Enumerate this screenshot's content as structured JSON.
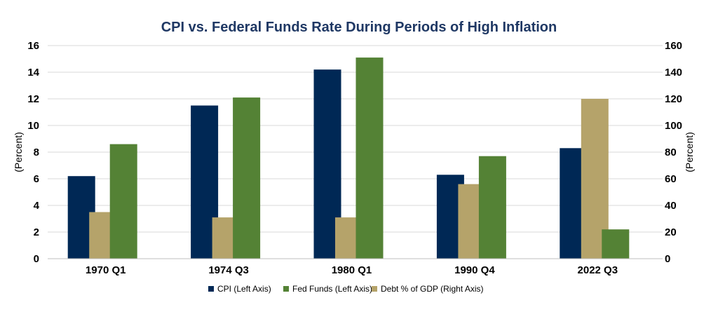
{
  "chart_data": {
    "type": "bar",
    "title": "CPI vs. Federal Funds Rate During Periods of High Inflation",
    "categories": [
      "1970 Q1",
      "1974 Q3",
      "1980 Q1",
      "1990 Q4",
      "2022 Q3"
    ],
    "series": [
      {
        "name": "CPI (Left Axis)",
        "axis": "left",
        "color": "#002855",
        "values": [
          6.2,
          11.5,
          14.2,
          6.3,
          8.3
        ]
      },
      {
        "name": "Debt % of GDP (Right Axis)",
        "axis": "right",
        "color": "#b5a36a",
        "values": [
          35,
          31,
          31,
          56,
          120
        ]
      },
      {
        "name": "Fed Funds (Left Axis)",
        "axis": "left",
        "color": "#548235",
        "values": [
          8.6,
          12.1,
          15.1,
          7.7,
          2.2
        ]
      }
    ],
    "legend_order": [
      0,
      2,
      1
    ],
    "legend_position": "bottom",
    "ylabel_left": "(Percent)",
    "ylabel_right": "(Percent)",
    "ylim_left": [
      0,
      16
    ],
    "ylim_right": [
      0,
      160
    ],
    "yticks_left": [
      "0",
      "2",
      "4",
      "6",
      "8",
      "10",
      "12",
      "14",
      "16"
    ],
    "yticks_right": [
      "0",
      "20",
      "40",
      "60",
      "80",
      "100",
      "120",
      "140",
      "160"
    ],
    "grid": true,
    "title_color": "#1f3864"
  }
}
